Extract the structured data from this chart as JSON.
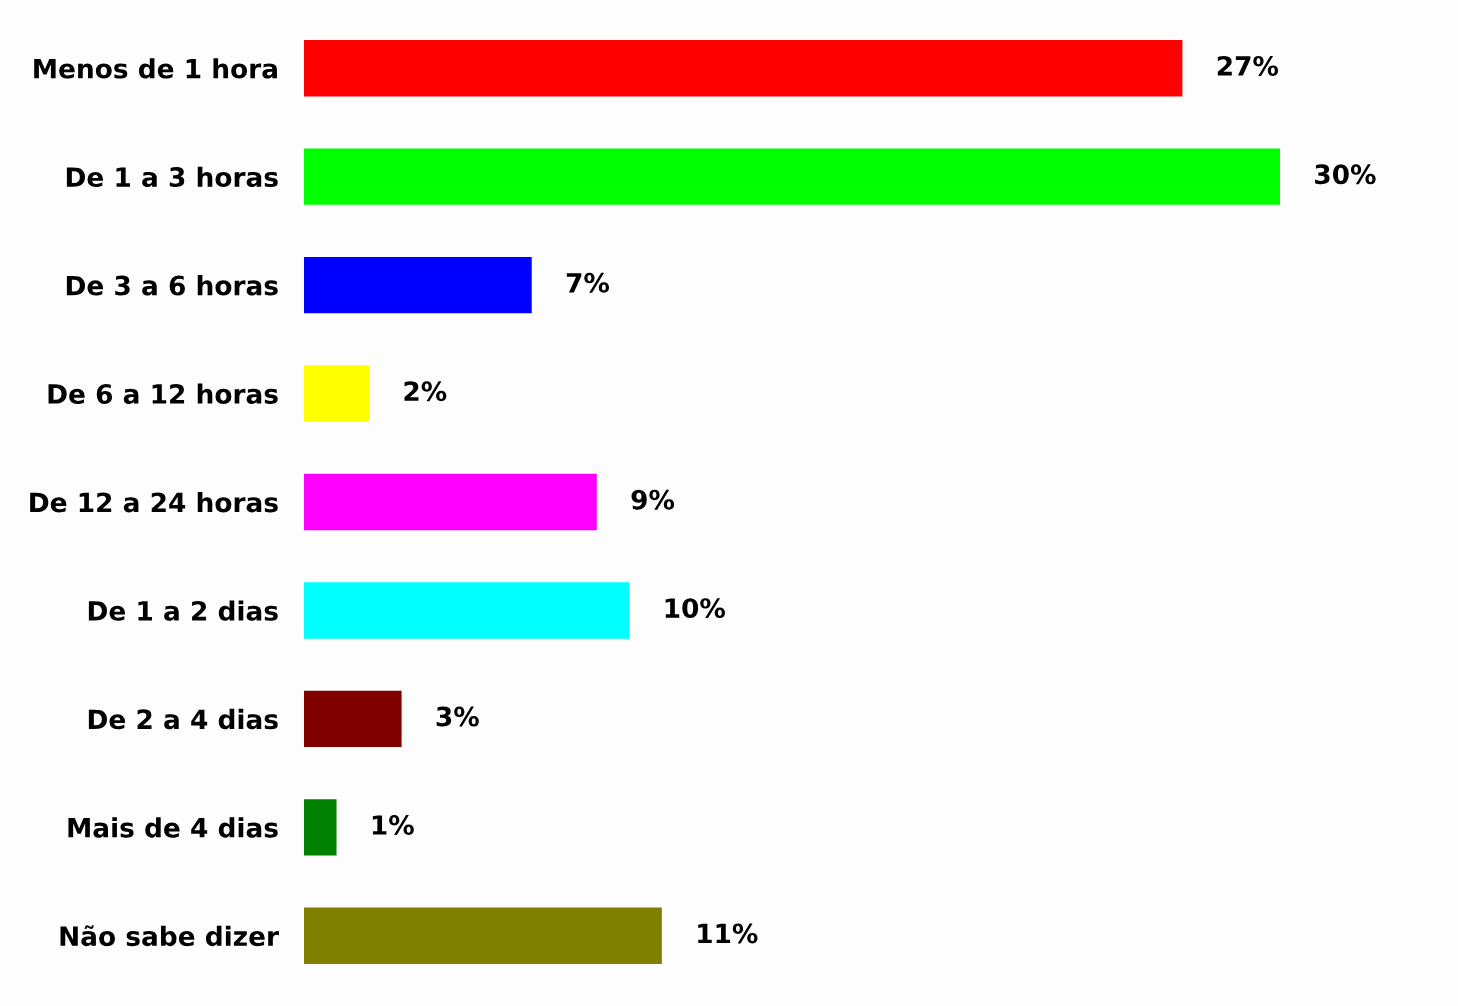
{
  "chart_data": {
    "type": "bar",
    "orientation": "horizontal",
    "categories": [
      "Menos de 1 hora",
      "De 1 a 3 horas",
      "De 3 a 6 horas",
      "De 6 a 12 horas",
      "De 12 a 24 horas",
      "De 1 a 2 dias",
      "De 2 a 4 dias",
      "Mais de 4 dias",
      "Não sabe dizer"
    ],
    "values": [
      27,
      30,
      7,
      2,
      9,
      10,
      3,
      1,
      11
    ],
    "colors": [
      "#ff0000",
      "#00ff00",
      "#0000ff",
      "#ffff00",
      "#ff00ff",
      "#00ffff",
      "#800000",
      "#008000",
      "#808000"
    ],
    "value_labels": [
      "27%",
      "30%",
      "7%",
      "2%",
      "9%",
      "10%",
      "3%",
      "1%",
      "11%"
    ],
    "tick_labels": "y",
    "grid": false
  }
}
